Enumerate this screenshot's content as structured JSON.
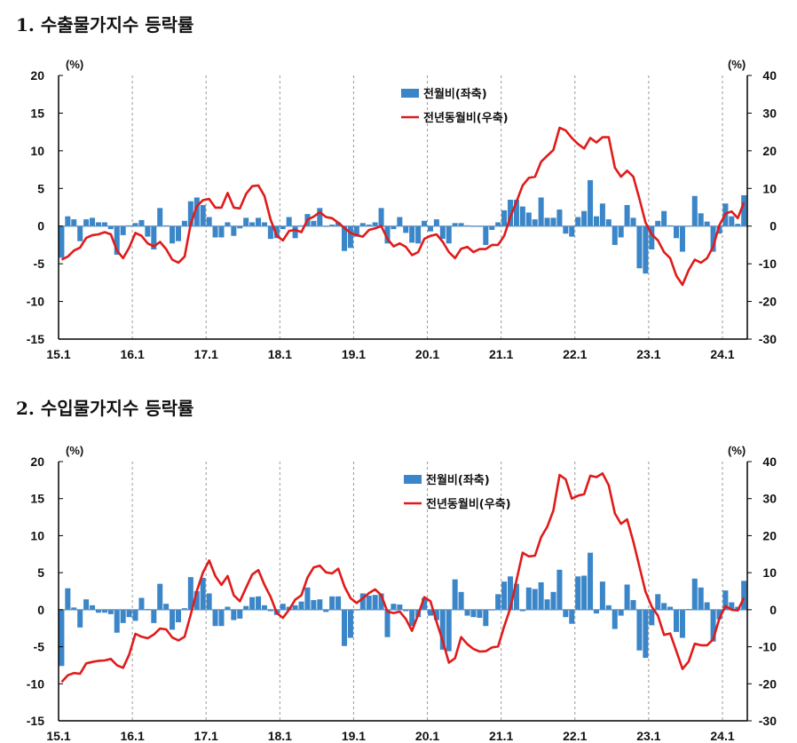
{
  "chart_data": [
    {
      "type": "bar+line",
      "title": "1. 수출물가지수 등락률",
      "frequency": "monthly",
      "x_range": [
        "15.1",
        "24.4"
      ],
      "x_tick_labels": [
        "15.1",
        "16.1",
        "17.1",
        "18.1",
        "19.1",
        "20.1",
        "21.1",
        "22.1",
        "23.1",
        "24.1"
      ],
      "y_left": {
        "unit": "(%)",
        "range": [
          -15,
          20
        ],
        "ticks": [
          "20",
          "15",
          "10",
          "5",
          "0",
          "-5",
          "-10",
          "-15"
        ]
      },
      "y_right": {
        "unit": "(%)",
        "range": [
          -30,
          40
        ],
        "ticks": [
          "40",
          "30",
          "20",
          "10",
          "0",
          "-10",
          "-20",
          "-30"
        ]
      },
      "grid": "vertical dashed at year starts",
      "legend": "top-center",
      "series": [
        {
          "name": "전월비(좌축)",
          "type": "bar",
          "axis": "left",
          "color": "#3a86c8",
          "values": [
            -4.2,
            1.3,
            0.9,
            -2.0,
            0.9,
            1.1,
            0.5,
            0.5,
            -0.4,
            -3.8,
            -1.2,
            0.1,
            0.4,
            0.8,
            -1.4,
            -3.1,
            2.4,
            0.1,
            -2.3,
            -2.0,
            0.7,
            3.3,
            3.8,
            2.8,
            1.2,
            -1.5,
            -1.5,
            0.5,
            -1.3,
            -0.3,
            1.1,
            0.5,
            1.1,
            0.5,
            -1.7,
            -1.6,
            -0.4,
            1.2,
            -1.6,
            0.1,
            1.6,
            0.7,
            2.4,
            -0.1,
            0.2,
            0.5,
            -3.3,
            -2.9,
            -1.4,
            0.4,
            0.2,
            0.5,
            2.4,
            -2.3,
            -0.4,
            1.2,
            -0.9,
            -2.2,
            -2.3,
            0.7,
            -0.7,
            0.9,
            -1.7,
            -2.3,
            0.4,
            0.4,
            0.1,
            -0.1,
            -0.1,
            -2.5,
            -0.5,
            0.5,
            2.1,
            3.5,
            3.5,
            2.6,
            1.8,
            0.9,
            3.8,
            1.1,
            1.1,
            2.2,
            -1.0,
            -1.4,
            1.2,
            2.0,
            6.1,
            1.3,
            3.0,
            0.9,
            -2.5,
            -1.5,
            2.8,
            1.1,
            -5.6,
            -6.3,
            -3.1,
            0.7,
            2.0,
            0.1,
            -1.6,
            -3.4,
            0.0,
            4.0,
            1.7,
            0.6,
            -3.4,
            -1.0,
            3.0,
            1.3,
            0.3,
            4.1
          ]
        },
        {
          "name": "전년동월비(우축)",
          "type": "line",
          "axis": "right",
          "color": "#e01b1b",
          "values": [
            -8.9,
            -8.1,
            -6.5,
            -5.7,
            -3.1,
            -2.4,
            -2.2,
            -1.6,
            -2.2,
            -6.5,
            -8.5,
            -5.7,
            -1.8,
            -2.6,
            -4.6,
            -5.4,
            -4.2,
            -6.1,
            -8.9,
            -9.7,
            -8.1,
            0.6,
            5.3,
            6.9,
            7.2,
            4.9,
            4.9,
            8.8,
            4.9,
            4.7,
            8.5,
            10.6,
            10.8,
            8.0,
            1.7,
            -2.6,
            -3.8,
            -1.3,
            -1.0,
            -1.6,
            1.7,
            2.5,
            3.7,
            2.4,
            2.1,
            0.9,
            -0.5,
            -1.8,
            -2.4,
            -2.8,
            -1.0,
            -0.6,
            0.0,
            -3.4,
            -5.4,
            -4.6,
            -5.5,
            -7.7,
            -6.9,
            -3.4,
            -2.6,
            -2.2,
            -4.2,
            -6.9,
            -8.5,
            -6.0,
            -5.5,
            -6.9,
            -6.1,
            -6.1,
            -5.0,
            -5.0,
            -2.6,
            2.5,
            6.5,
            10.8,
            12.8,
            13.1,
            17.1,
            18.7,
            20.2,
            26.1,
            25.4,
            23.4,
            21.8,
            20.6,
            23.4,
            22.2,
            23.6,
            23.6,
            15.5,
            13.1,
            14.7,
            13.1,
            7.2,
            0.9,
            -2.2,
            -3.8,
            -6.9,
            -8.5,
            -13.2,
            -15.6,
            -11.7,
            -8.9,
            -9.7,
            -8.5,
            -5.4,
            0.2,
            3.3,
            3.9,
            2.1,
            6.3
          ]
        }
      ]
    },
    {
      "type": "bar+line",
      "title": "2. 수입물가지수 등락률",
      "frequency": "monthly",
      "x_range": [
        "15.1",
        "24.4"
      ],
      "x_tick_labels": [
        "15.1",
        "16.1",
        "17.1",
        "18.1",
        "19.1",
        "20.1",
        "21.1",
        "22.1",
        "23.1",
        "24.1"
      ],
      "y_left": {
        "unit": "(%)",
        "range": [
          -15,
          20
        ],
        "ticks": [
          "20",
          "15",
          "10",
          "5",
          "0",
          "-5",
          "-10",
          "-15"
        ]
      },
      "y_right": {
        "unit": "(%)",
        "range": [
          -30,
          40
        ],
        "ticks": [
          "40",
          "30",
          "20",
          "10",
          "0",
          "-10",
          "-20",
          "-30"
        ]
      },
      "grid": "vertical dashed at year starts",
      "legend": "top-center",
      "series": [
        {
          "name": "전월비(좌축)",
          "type": "bar",
          "axis": "left",
          "color": "#3a86c8",
          "values": [
            -7.6,
            2.9,
            0.3,
            -2.4,
            1.4,
            0.6,
            -0.4,
            -0.4,
            -0.6,
            -3.1,
            -1.8,
            -1.0,
            -1.5,
            1.6,
            0.1,
            -1.8,
            3.5,
            0.8,
            -2.7,
            -1.7,
            0.2,
            4.4,
            2.5,
            4.3,
            2.2,
            -2.2,
            -2.2,
            0.4,
            -1.4,
            -1.2,
            0.5,
            1.7,
            1.8,
            0.6,
            -0.2,
            -0.7,
            0.8,
            0.4,
            0.6,
            1.1,
            3.0,
            1.3,
            1.4,
            -0.3,
            1.8,
            1.8,
            -4.9,
            -3.8,
            -0.1,
            2.2,
            1.9,
            2.0,
            2.2,
            -3.7,
            0.8,
            0.7,
            -0.2,
            -2.2,
            -1.0,
            1.6,
            -0.8,
            -1.4,
            -5.4,
            -5.6,
            4.1,
            2.4,
            -0.8,
            -1.0,
            -1.1,
            -2.2,
            -0.1,
            2.1,
            3.8,
            4.5,
            3.5,
            -0.2,
            3.0,
            2.8,
            3.7,
            1.4,
            2.4,
            5.4,
            -1.0,
            -1.9,
            4.5,
            4.6,
            7.7,
            -0.5,
            3.8,
            0.6,
            -2.6,
            -0.8,
            3.4,
            1.3,
            -5.5,
            -6.5,
            -2.1,
            2.1,
            0.9,
            0.4,
            -3.0,
            -3.8,
            0.1,
            4.2,
            3.0,
            1.0,
            -4.3,
            -1.3,
            2.6,
            1.0,
            0.4,
            3.9
          ]
        },
        {
          "name": "전년동월비(우축)",
          "type": "line",
          "axis": "right",
          "color": "#e01b1b",
          "values": [
            -19.5,
            -17.7,
            -17.1,
            -17.3,
            -14.5,
            -14.1,
            -13.8,
            -13.7,
            -13.3,
            -15.0,
            -15.7,
            -12.1,
            -6.5,
            -7.3,
            -7.7,
            -6.7,
            -5.1,
            -5.3,
            -7.5,
            -8.3,
            -7.3,
            -1.3,
            5.1,
            10.1,
            13.3,
            9.1,
            6.7,
            9.1,
            3.9,
            2.3,
            5.9,
            9.5,
            10.7,
            6.7,
            3.5,
            -0.9,
            -2.2,
            0.0,
            2.7,
            3.9,
            8.7,
            11.4,
            11.9,
            10.1,
            9.8,
            11.1,
            6.3,
            3.1,
            1.8,
            3.1,
            4.5,
            5.5,
            3.9,
            -0.5,
            -0.9,
            -0.5,
            -2.5,
            -5.7,
            -1.3,
            3.4,
            2.3,
            -3.3,
            -8.5,
            -14.3,
            -13.1,
            -7.4,
            -9.3,
            -10.6,
            -11.3,
            -11.2,
            -10.2,
            -9.9,
            -4.5,
            0.5,
            8.0,
            15.4,
            14.4,
            14.6,
            19.6,
            22.4,
            26.8,
            36.4,
            35.2,
            30.0,
            30.8,
            31.2,
            36.2,
            35.8,
            36.8,
            33.6,
            26.0,
            23.2,
            24.4,
            18.4,
            11.6,
            4.8,
            0.8,
            -1.6,
            -6.8,
            -6.4,
            -11.2,
            -16.0,
            -14.0,
            -9.2,
            -9.6,
            -9.6,
            -8.0,
            -2.4,
            1.0,
            0.0,
            -0.2,
            3.2
          ]
        }
      ]
    }
  ]
}
